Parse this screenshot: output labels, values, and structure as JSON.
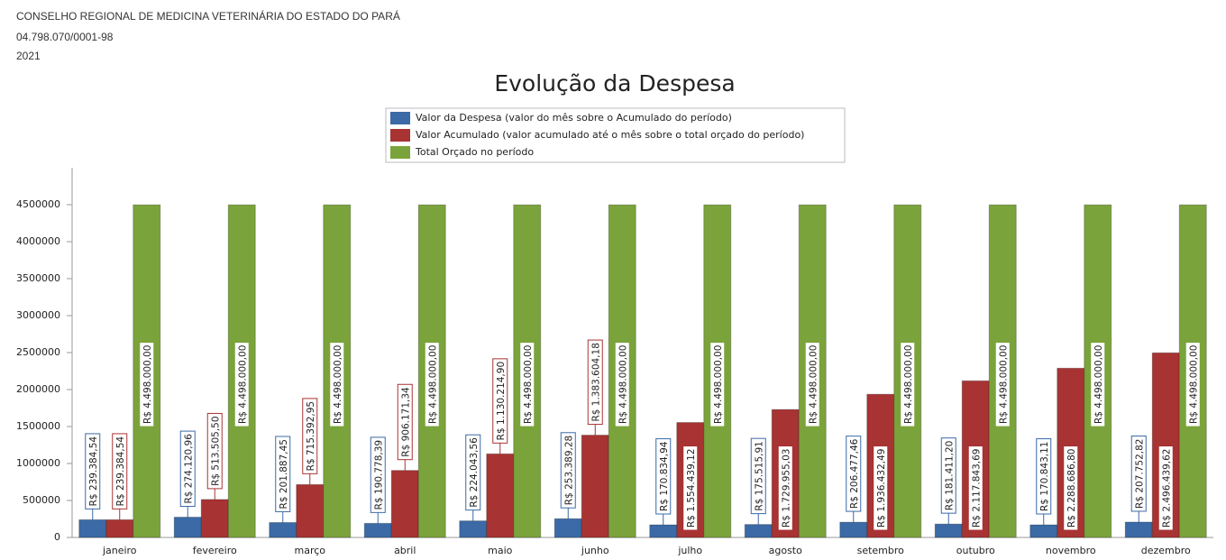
{
  "header": {
    "org": "CONSELHO REGIONAL DE MEDICINA VETERINÁRIA DO ESTADO DO PARÁ",
    "cnpj": "04.798.070/0001-98",
    "year": "2021"
  },
  "chart_data": {
    "type": "bar",
    "title": "Evolução da Despesa",
    "categories": [
      "janeiro",
      "fevereiro",
      "março",
      "abril",
      "maio",
      "junho",
      "julho",
      "agosto",
      "setembro",
      "outubro",
      "novembro",
      "dezembro"
    ],
    "series": [
      {
        "name": "Valor da Despesa (valor do mês sobre o Acumulado do período)",
        "color": "#3b6aa6",
        "values": [
          239384.54,
          274120.96,
          201887.45,
          190778.39,
          224043.56,
          253389.28,
          170834.94,
          175515.91,
          206477.46,
          181411.2,
          170843.11,
          207752.82
        ],
        "value_labels": [
          "R$ 239.384,54",
          "R$ 274.120,96",
          "R$ 201.887,45",
          "R$ 190.778,39",
          "R$ 224.043,56",
          "R$ 253.389,28",
          "R$ 170.834,94",
          "R$ 175.515,91",
          "R$ 206.477,46",
          "R$ 181.411,20",
          "R$ 170.843,11",
          "R$ 207.752,82"
        ]
      },
      {
        "name": "Valor Acumulado (valor acumulado até o mês sobre o total orçado do período)",
        "color": "#a83333",
        "values": [
          239384.54,
          513505.5,
          715392.95,
          906171.34,
          1130214.9,
          1383604.18,
          1554439.12,
          1729955.03,
          1936432.49,
          2117843.69,
          2288686.8,
          2496439.62
        ],
        "value_labels": [
          "R$ 239.384,54",
          "R$ 513.505,50",
          "R$ 715.392,95",
          "R$ 906.171,34",
          "R$ 1.130.214,90",
          "R$ 1.383.604,18",
          "R$ 1.554.439,12",
          "R$ 1.729.955,03",
          "R$ 1.936.432,49",
          "R$ 2.117.843,69",
          "R$ 2.288.686,80",
          "R$ 2.496.439,62"
        ]
      },
      {
        "name": "Total Orçado no período",
        "color": "#7ba33b",
        "values": [
          4498000,
          4498000,
          4498000,
          4498000,
          4498000,
          4498000,
          4498000,
          4498000,
          4498000,
          4498000,
          4498000,
          4498000
        ],
        "value_labels": [
          "R$ 4.498.000,00",
          "R$ 4.498.000,00",
          "R$ 4.498.000,00",
          "R$ 4.498.000,00",
          "R$ 4.498.000,00",
          "R$ 4.498.000,00",
          "R$ 4.498.000,00",
          "R$ 4.498.000,00",
          "R$ 4.498.000,00",
          "R$ 4.498.000,00",
          "R$ 4.498.000,00",
          "R$ 4.498.000,00"
        ]
      }
    ],
    "ylim": [
      0,
      5000000
    ],
    "yticks": [
      0,
      500000,
      1000000,
      1500000,
      2000000,
      2500000,
      3000000,
      3500000,
      4000000,
      4500000
    ],
    "legend": "top"
  }
}
